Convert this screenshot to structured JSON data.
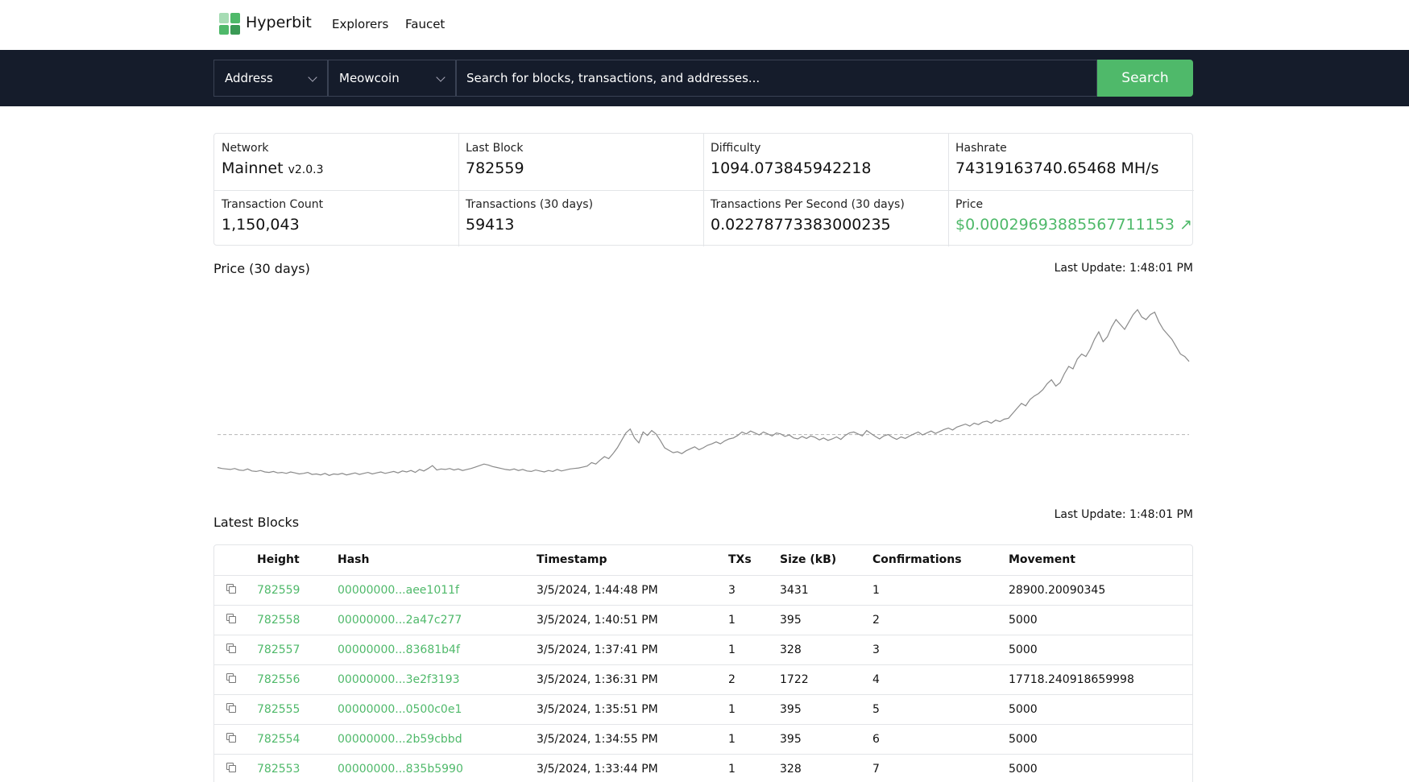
{
  "brand": {
    "name": "Hyperbit",
    "colors": [
      "#7ac58f",
      "#4fb96a",
      "#3a9a55",
      "#a6dcb4"
    ]
  },
  "nav": {
    "items": [
      "Explorers",
      "Faucet"
    ]
  },
  "search": {
    "type_select": "Address",
    "network_select": "Meowcoin",
    "placeholder": "Search for blocks, transactions, and addresses...",
    "button": "Search"
  },
  "stats": [
    {
      "label": "Network",
      "value": "Mainnet",
      "version": "v2.0.3"
    },
    {
      "label": "Last Block",
      "value": "782559"
    },
    {
      "label": "Difficulty",
      "value": "1094.073845942218"
    },
    {
      "label": "Hashrate",
      "value": "74319163740.65468 MH/s"
    },
    {
      "label": "Transaction Count",
      "value": "1,150,043"
    },
    {
      "label": "Transactions (30 days)",
      "value": "59413"
    },
    {
      "label": "Transactions Per Second (30 days)",
      "value": "0.02278773383000235"
    },
    {
      "label": "Price",
      "value": "$0.00029693885567711153 ↗"
    }
  ],
  "price_section": {
    "title": "Price (30 days)",
    "last_update": "Last Update: 1:48:01 PM"
  },
  "chart_data": {
    "type": "line",
    "title": "Price (30 days)",
    "xlabel": "",
    "ylabel": "",
    "grid": false,
    "reference_line": "dashed",
    "series_values": [
      40,
      38,
      37,
      36,
      38,
      35,
      34,
      37,
      33,
      32,
      34,
      31,
      30,
      32,
      29,
      30,
      28,
      31,
      29,
      27,
      28,
      30,
      26,
      27,
      25,
      28,
      24,
      27,
      26,
      28,
      25,
      27,
      29,
      26,
      28,
      30,
      27,
      29,
      31,
      28,
      30,
      32,
      29,
      33,
      31,
      34,
      30,
      36,
      33,
      38,
      44,
      35,
      37,
      36,
      38,
      35,
      37,
      34,
      36,
      38,
      41,
      44,
      47,
      45,
      42,
      40,
      38,
      36,
      35,
      37,
      34,
      36,
      33,
      32,
      35,
      33,
      31,
      34,
      32,
      36,
      33,
      35,
      37,
      38,
      39,
      41,
      43,
      50,
      47,
      55,
      62,
      58,
      68,
      80,
      95,
      110,
      118,
      100,
      90,
      112,
      105,
      115,
      108,
      95,
      80,
      75,
      70,
      72,
      68,
      74,
      78,
      82,
      76,
      80,
      85,
      88,
      92,
      88,
      94,
      98,
      100,
      105,
      112,
      108,
      114,
      110,
      106,
      112,
      108,
      104,
      110,
      108,
      103,
      106,
      100,
      98,
      103,
      99,
      104,
      101,
      96,
      100,
      95,
      98,
      102,
      97,
      105,
      110,
      112,
      108,
      104,
      115,
      109,
      103,
      98,
      104,
      107,
      101,
      97,
      102,
      99,
      104,
      108,
      112,
      106,
      110,
      114,
      109,
      113,
      117,
      120,
      116,
      122,
      125,
      128,
      124,
      130,
      127,
      132,
      134,
      130,
      136,
      133,
      138,
      140,
      150,
      160,
      170,
      165,
      178,
      185,
      190,
      198,
      210,
      218,
      205,
      212,
      230,
      245,
      240,
      260,
      270,
      265,
      280,
      300,
      315,
      295,
      305,
      325,
      340,
      330,
      320,
      335,
      350,
      360,
      345,
      340,
      350,
      355,
      335,
      320,
      310,
      300,
      285,
      270,
      265,
      255
    ],
    "ylim": [
      0,
      400
    ]
  },
  "blocks_section": {
    "title": "Latest Blocks",
    "last_update": "Last Update: 1:48:01 PM"
  },
  "table": {
    "columns": [
      "",
      "Height",
      "Hash",
      "Timestamp",
      "TXs",
      "Size (kB)",
      "Confirmations",
      "Movement"
    ],
    "rows": [
      [
        "782559",
        "00000000...aee1011f",
        "3/5/2024, 1:44:48 PM",
        "3",
        "3431",
        "1",
        "28900.20090345"
      ],
      [
        "782558",
        "00000000...2a47c277",
        "3/5/2024, 1:40:51 PM",
        "1",
        "395",
        "2",
        "5000"
      ],
      [
        "782557",
        "00000000...83681b4f",
        "3/5/2024, 1:37:41 PM",
        "1",
        "328",
        "3",
        "5000"
      ],
      [
        "782556",
        "00000000...3e2f3193",
        "3/5/2024, 1:36:31 PM",
        "2",
        "1722",
        "4",
        "17718.240918659998"
      ],
      [
        "782555",
        "00000000...0500c0e1",
        "3/5/2024, 1:35:51 PM",
        "1",
        "395",
        "5",
        "5000"
      ],
      [
        "782554",
        "00000000...2b59cbbd",
        "3/5/2024, 1:34:55 PM",
        "1",
        "395",
        "6",
        "5000"
      ],
      [
        "782553",
        "00000000...835b5990",
        "3/5/2024, 1:33:44 PM",
        "1",
        "328",
        "7",
        "5000"
      ]
    ]
  }
}
